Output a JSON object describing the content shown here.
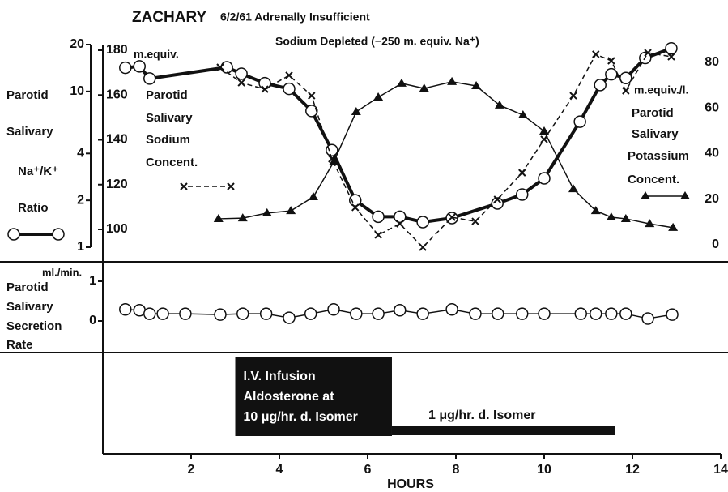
{
  "title": "ZACHARY",
  "subtitle": [
    "6/2/61 Adrenally Insufficient",
    "Sodium Depleted (−250 m. equiv. Na⁺)"
  ],
  "chart_data": [
    {
      "type": "line",
      "xlim": [
        0,
        14
      ],
      "xticks": [
        2,
        4,
        6,
        8,
        10,
        12,
        14
      ],
      "xlabel": "HOURS",
      "ylim": [
        1,
        20
      ],
      "ylog": true,
      "yticks": [
        1,
        2,
        4,
        10,
        20
      ],
      "y_label": [
        "Parotid",
        "Salivary",
        "Na⁺/K⁺",
        "Ratio"
      ],
      "y3lim": [
        100,
        180
      ],
      "y3ticks": [
        100,
        120,
        140,
        160,
        180
      ],
      "y3_unit": "m.equiv.",
      "y3_label": [
        "Parotid",
        "Salivary",
        "Sodium",
        "Concent."
      ],
      "y2lim": [
        0,
        80
      ],
      "y2ticks": [
        0,
        20,
        40,
        60,
        80
      ],
      "y2_unit": "m.equiv./l.",
      "y2_label": [
        "Parotid",
        "Salivary",
        "Potassium",
        "Concent."
      ],
      "series": [
        {
          "axis": "y",
          "marker": "circle",
          "color": "#111111",
          "x": [
            0.51,
            0.83,
            1.06,
            2.81,
            3.14,
            3.67,
            4.22,
            4.73,
            5.19,
            5.72,
            6.24,
            6.73,
            7.25,
            7.91,
            8.94,
            9.5,
            10.0,
            10.81,
            11.27,
            11.52,
            11.85,
            12.29,
            12.88
          ],
          "values": [
            14.2,
            14.5,
            12.1,
            14.3,
            13.0,
            11.3,
            10.4,
            7.5,
            4.2,
            2.0,
            1.57,
            1.57,
            1.45,
            1.54,
            1.91,
            2.18,
            2.77,
            6.4,
            11.0,
            12.9,
            12.2,
            16.4,
            18.9
          ]
        },
        {
          "axis": "y3",
          "marker": "cross",
          "color": "#111111",
          "x": [
            2.66,
            3.14,
            3.67,
            4.22,
            4.73,
            5.19,
            5.72,
            6.24,
            6.73,
            7.25,
            7.91,
            8.44,
            8.94,
            9.5,
            10.0,
            10.66,
            11.17,
            11.52,
            11.85,
            12.35,
            12.88
          ],
          "values": [
            172.4,
            165.5,
            162.6,
            168.8,
            159.7,
            131.5,
            109.8,
            97.5,
            102.5,
            92.0,
            105.4,
            103.6,
            113.4,
            125.3,
            140.2,
            159.7,
            178.2,
            175.3,
            161.9,
            178.9,
            177.1
          ]
        },
        {
          "axis": "y2",
          "marker": "triangle",
          "color": "#111111",
          "x": [
            2.62,
            3.17,
            3.72,
            4.26,
            4.77,
            5.23,
            5.74,
            6.24,
            6.77,
            7.28,
            7.91,
            8.46,
            8.99,
            9.52,
            10.0,
            10.66,
            11.17,
            11.52,
            11.85,
            12.39,
            12.92
          ],
          "values": [
            11.4,
            11.7,
            13.9,
            14.9,
            21.0,
            36.3,
            58.3,
            64.7,
            70.8,
            68.6,
            71.5,
            69.7,
            61.2,
            56.9,
            49.8,
            24.5,
            14.9,
            12.1,
            11.4,
            9.2,
            7.5
          ]
        }
      ]
    },
    {
      "type": "line",
      "ylim": [
        0,
        1
      ],
      "yticks": [
        0,
        1
      ],
      "y_unit": "ml./min.",
      "y_label": [
        "Parotid",
        "Salivary",
        "Secretion",
        "Rate"
      ],
      "series": [
        {
          "marker": "circle",
          "color": "#111111",
          "x": [
            0.51,
            0.83,
            1.06,
            1.36,
            1.87,
            2.66,
            3.17,
            3.7,
            4.22,
            4.71,
            5.23,
            5.74,
            6.24,
            6.73,
            7.25,
            7.91,
            8.44,
            8.95,
            9.5,
            10.0,
            10.83,
            11.17,
            11.52,
            11.85,
            12.35,
            12.9
          ],
          "values": [
            0.29,
            0.27,
            0.18,
            0.18,
            0.18,
            0.16,
            0.18,
            0.18,
            0.08,
            0.18,
            0.29,
            0.18,
            0.18,
            0.27,
            0.18,
            0.29,
            0.18,
            0.18,
            0.18,
            0.18,
            0.18,
            0.18,
            0.18,
            0.18,
            0.06,
            0.16
          ]
        }
      ]
    }
  ],
  "infusion": [
    {
      "lines": [
        "I.V. Infusion",
        "Aldosterone at",
        "10 μg/hr. d. Isomer"
      ],
      "start": 3.0,
      "end": 6.55
    },
    {
      "lines": [
        "1 μg/hr. d. Isomer"
      ],
      "start": 6.55,
      "end": 11.6
    }
  ]
}
